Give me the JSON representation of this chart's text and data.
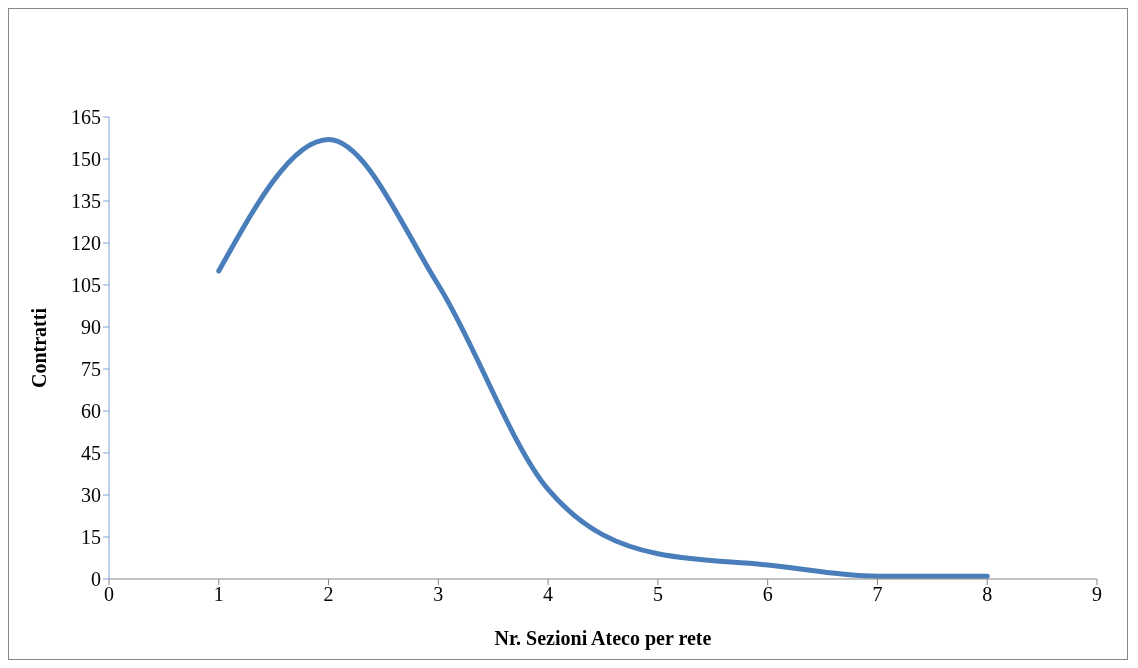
{
  "chart_data": {
    "type": "line",
    "xlabel": "Nr. Sezioni Ateco per rete",
    "ylabel": "Contratti",
    "x": [
      1,
      2,
      3,
      4,
      5,
      6,
      7,
      8
    ],
    "series": [
      {
        "color": "#4a7ebb",
        "values": [
          110,
          157,
          105,
          32,
          9,
          5,
          1,
          1
        ]
      }
    ],
    "xlim": [
      0,
      9
    ],
    "xticks": [
      0,
      1,
      2,
      3,
      4,
      5,
      6,
      7,
      8,
      9
    ],
    "ylim": [
      0,
      165
    ],
    "yticks": [
      0,
      15,
      30,
      45,
      60,
      75,
      90,
      105,
      120,
      135,
      150,
      165
    ],
    "grid": false,
    "legend": false,
    "marker": "none",
    "line_style": "solid"
  }
}
